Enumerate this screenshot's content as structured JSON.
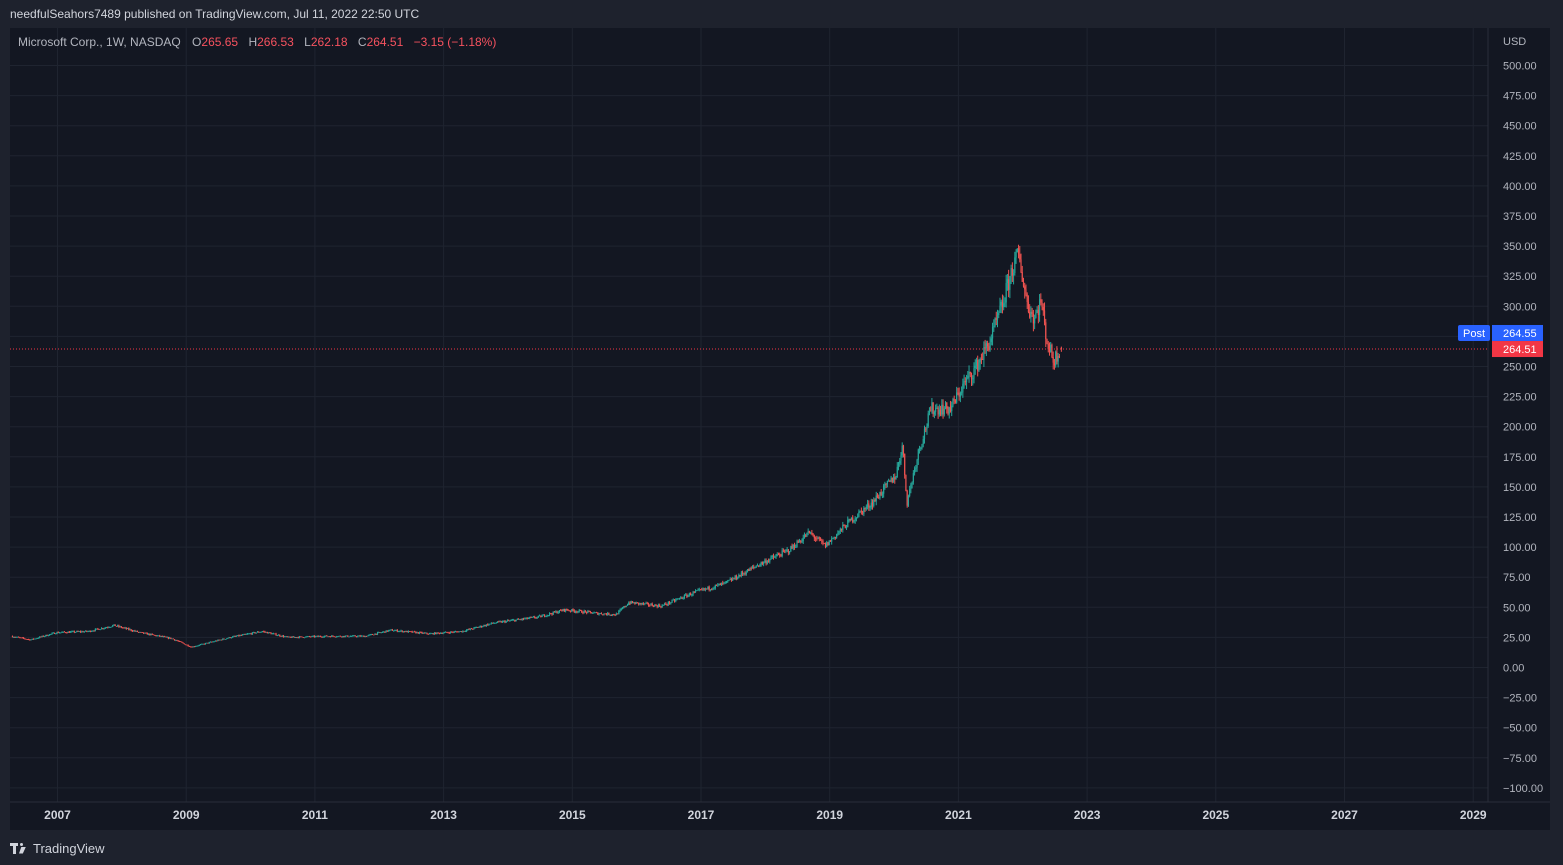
{
  "publisher_line": "needfulSeahors7489 published on TradingView.com, Jul 11, 2022 22:50 UTC",
  "legend": {
    "symbol": "Microsoft Corp., 1W, NASDAQ",
    "open_label": "O",
    "open": "265.65",
    "high_label": "H",
    "high": "266.53",
    "low_label": "L",
    "low": "262.18",
    "close_label": "C",
    "close": "264.51",
    "change": "−3.15 (−1.18%)"
  },
  "footer": {
    "brand": "TradingView",
    "logo_icon": "tradingview-logo-icon"
  },
  "colors": {
    "up": "#26a69a",
    "down": "#ef5350",
    "background": "#131722",
    "grid": "#1f2430",
    "post_badge": "#2962ff",
    "price_badge": "#f23645"
  },
  "chart_data": {
    "type": "candlestick",
    "symbol": "Microsoft Corp.",
    "interval": "1W",
    "exchange": "NASDAQ",
    "currency": "USD",
    "ylim": [
      -100,
      500
    ],
    "y_ticks": [
      500,
      475,
      450,
      425,
      400,
      375,
      350,
      325,
      300,
      275,
      250,
      225,
      200,
      175,
      150,
      125,
      100,
      75,
      50,
      25,
      0,
      -25,
      -50,
      -75,
      -100
    ],
    "y_tick_labels": [
      "500.00",
      "475.00",
      "450.00",
      "425.00",
      "400.00",
      "375.00",
      "350.00",
      "325.00",
      "300.00",
      "275.00",
      "250.00",
      "225.00",
      "200.00",
      "175.00",
      "150.00",
      "125.00",
      "100.00",
      "75.00",
      "50.00",
      "25.00",
      "0.00",
      "−25.00",
      "−50.00",
      "−75.00",
      "−100.00"
    ],
    "xlim": [
      2006.3,
      2029.2
    ],
    "x_ticks": [
      2007,
      2009,
      2011,
      2013,
      2015,
      2017,
      2019,
      2021,
      2023,
      2025,
      2027,
      2029
    ],
    "x_tick_labels": [
      "2007",
      "2009",
      "2011",
      "2013",
      "2015",
      "2017",
      "2019",
      "2021",
      "2023",
      "2025",
      "2027",
      "2029"
    ],
    "price_anchors": [
      [
        2006.3,
        26
      ],
      [
        2006.6,
        23
      ],
      [
        2007.0,
        29
      ],
      [
        2007.5,
        30
      ],
      [
        2007.9,
        35
      ],
      [
        2008.3,
        29
      ],
      [
        2008.8,
        24
      ],
      [
        2009.1,
        17
      ],
      [
        2009.7,
        25
      ],
      [
        2010.2,
        30
      ],
      [
        2010.6,
        25
      ],
      [
        2011.2,
        26
      ],
      [
        2011.8,
        26
      ],
      [
        2012.2,
        31
      ],
      [
        2012.8,
        28
      ],
      [
        2013.3,
        30
      ],
      [
        2013.8,
        37
      ],
      [
        2014.5,
        42
      ],
      [
        2014.9,
        48
      ],
      [
        2015.4,
        45
      ],
      [
        2015.7,
        44
      ],
      [
        2015.9,
        54
      ],
      [
        2016.4,
        51
      ],
      [
        2016.9,
        62
      ],
      [
        2017.4,
        70
      ],
      [
        2017.9,
        85
      ],
      [
        2018.4,
        98
      ],
      [
        2018.7,
        112
      ],
      [
        2018.95,
        101
      ],
      [
        2019.3,
        120
      ],
      [
        2019.7,
        138
      ],
      [
        2020.05,
        160
      ],
      [
        2020.15,
        185
      ],
      [
        2020.22,
        137
      ],
      [
        2020.4,
        180
      ],
      [
        2020.6,
        215
      ],
      [
        2020.9,
        215
      ],
      [
        2021.1,
        235
      ],
      [
        2021.3,
        250
      ],
      [
        2021.5,
        270
      ],
      [
        2021.7,
        300
      ],
      [
        2021.85,
        330
      ],
      [
        2021.95,
        343
      ],
      [
        2022.1,
        300
      ],
      [
        2022.2,
        290
      ],
      [
        2022.3,
        305
      ],
      [
        2022.4,
        270
      ],
      [
        2022.5,
        255
      ],
      [
        2022.6,
        264.51
      ]
    ],
    "last_candle": {
      "open": 265.65,
      "high": 266.53,
      "low": 262.18,
      "close": 264.51
    },
    "last_price_label": "264.51",
    "post_market_label": "Post",
    "post_market_price": "264.55",
    "currency_label": "USD"
  }
}
